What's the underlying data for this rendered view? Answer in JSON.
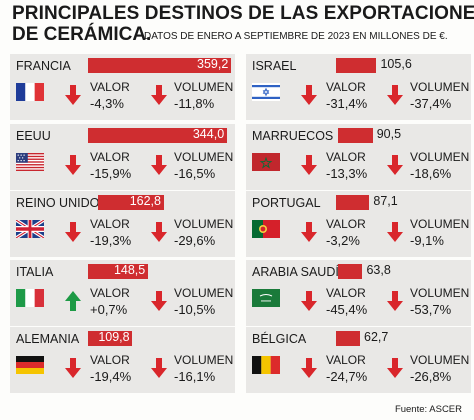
{
  "title_line1": "PRINCIPALES DESTINOS DE LAS EXPORTACIONES",
  "title_line2": "DE CERÁMICA.",
  "subtitle": "DATOS DE ENERO A SEPTIEMBRE DE 2023 EN MILLONES DE €.",
  "source": "Fuente: ASCER",
  "colors": {
    "bar": "#cf2d30",
    "down_arrow": "#d9262b",
    "up_arrow": "#1d9a45",
    "card_bg": "#e9e8e6"
  },
  "chart_data": {
    "type": "bar",
    "title": "PRINCIPALES DESTINOS DE LAS EXPORTACIONES DE CERÁMICA.",
    "subtitle": "DATOS DE ENERO A SEPTIEMBRE DE 2023 EN MILLONES DE €.",
    "value_label": "VALOR",
    "volume_label": "VOLUMEN",
    "xlim": [
      0,
      359.2
    ],
    "countries": [
      {
        "name": "FRANCIA",
        "flag": "france-flag",
        "value": 359.2,
        "value_text": "359,2",
        "valor": "-4,3%",
        "valor_dir": "down",
        "volumen": "-11,8%",
        "volumen_dir": "down"
      },
      {
        "name": "EEUU",
        "flag": "usa-flag",
        "value": 344.0,
        "value_text": "344,0",
        "valor": "-15,9%",
        "valor_dir": "down",
        "volumen": "-16,5%",
        "volumen_dir": "down"
      },
      {
        "name": "REINO UNIDO",
        "flag": "uk-flag",
        "value": 162.8,
        "value_text": "162,8",
        "valor": "-19,3%",
        "valor_dir": "down",
        "volumen": "-29,6%",
        "volumen_dir": "down"
      },
      {
        "name": "ITALIA",
        "flag": "italy-flag",
        "value": 148.5,
        "value_text": "148,5",
        "valor": "+0,7%",
        "valor_dir": "up",
        "volumen": "-10,5%",
        "volumen_dir": "down"
      },
      {
        "name": "ALEMANIA",
        "flag": "germany-flag",
        "value": 109.8,
        "value_text": "109,8",
        "valor": "-19,4%",
        "valor_dir": "down",
        "volumen": "-16,1%",
        "volumen_dir": "down"
      },
      {
        "name": "ISRAEL",
        "flag": "israel-flag",
        "value": 105.6,
        "value_text": "105,6",
        "valor": "-31,4%",
        "valor_dir": "down",
        "volumen": "-37,4%",
        "volumen_dir": "down"
      },
      {
        "name": "MARRUECOS",
        "flag": "morocco-flag",
        "value": 90.5,
        "value_text": "90,5",
        "valor": "-13,3%",
        "valor_dir": "down",
        "volumen": "-18,6%",
        "volumen_dir": "down"
      },
      {
        "name": "PORTUGAL",
        "flag": "portugal-flag",
        "value": 87.1,
        "value_text": "87,1",
        "valor": "-3,2%",
        "valor_dir": "down",
        "volumen": "-9,1%",
        "volumen_dir": "down"
      },
      {
        "name": "ARABIA SAUDÍ",
        "flag": "saudi-arabia-flag",
        "value": 63.8,
        "value_text": "63,8",
        "valor": "-45,4%",
        "valor_dir": "down",
        "volumen": "-53,7%",
        "volumen_dir": "down"
      },
      {
        "name": "BÉLGICA",
        "flag": "belgium-flag",
        "value": 62.7,
        "value_text": "62,7",
        "valor": "-24,7%",
        "valor_dir": "down",
        "volumen": "-26,8%",
        "volumen_dir": "down"
      }
    ]
  }
}
